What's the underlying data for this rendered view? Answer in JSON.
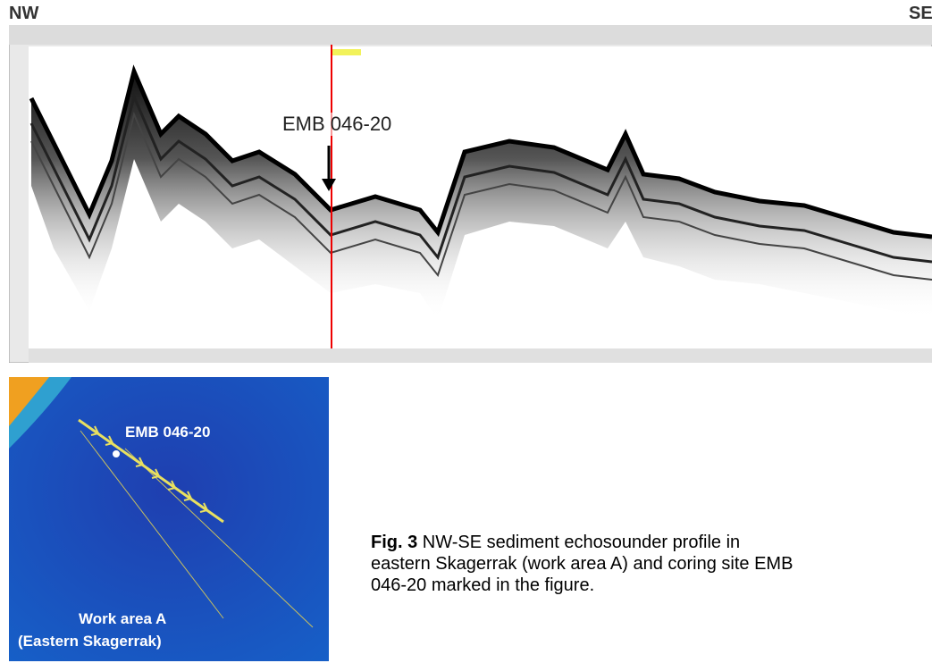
{
  "header": {
    "left": "NW",
    "right": "SE"
  },
  "profile": {
    "label": "EMB 046-20"
  },
  "map": {
    "label": "EMB 046-20",
    "area": [
      "Work area A",
      "(Eastern Skagerrak)"
    ]
  },
  "caption": {
    "prefix": "Fig. 3",
    "lines": [
      "NW-SE sediment echosounder profile in",
      "eastern Skagerrak (work area A) and coring site EMB",
      "046-20 marked in the figure."
    ]
  }
}
